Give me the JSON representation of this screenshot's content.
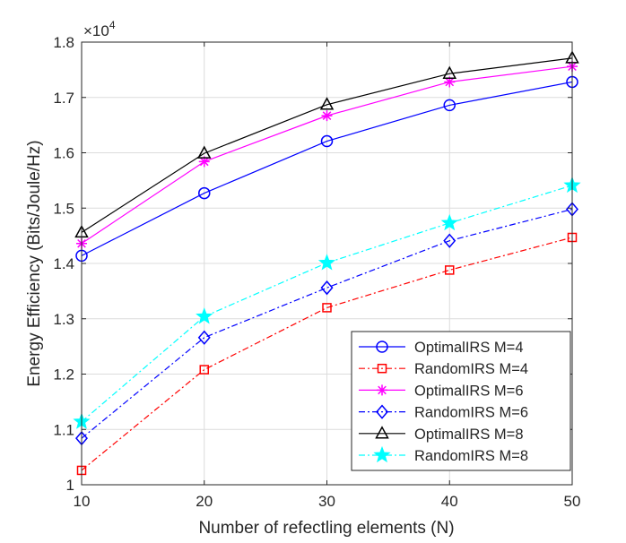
{
  "chart_data": {
    "type": "line",
    "title": "",
    "xlabel": "Number of refectling elements (N)",
    "ylabel": "Energy Efficiency (Bits/Joule/Hz)",
    "y_exponent_label": "×10",
    "y_exponent_power": "4",
    "x": [
      10,
      20,
      30,
      40,
      50
    ],
    "xlim": [
      10,
      50
    ],
    "ylim": [
      1.0,
      1.8
    ],
    "x_ticks": [
      "10",
      "20",
      "30",
      "40",
      "50"
    ],
    "y_ticks": [
      "1",
      "1.1",
      "1.2",
      "1.3",
      "1.4",
      "1.5",
      "1.6",
      "1.7",
      "1.8"
    ],
    "grid": true,
    "legend_position": "bottom-right",
    "series": [
      {
        "name": "OptimalIRS M=4",
        "values": [
          1.414,
          1.527,
          1.621,
          1.686,
          1.728
        ],
        "color": "#0000ff",
        "dash": "solid",
        "marker": "circle"
      },
      {
        "name": "RandomIRS M=4",
        "values": [
          1.026,
          1.208,
          1.32,
          1.388,
          1.447
        ],
        "color": "#ff0000",
        "dash": "dashdot",
        "marker": "square"
      },
      {
        "name": "OptimalIRS M=6",
        "values": [
          1.436,
          1.584,
          1.667,
          1.728,
          1.756
        ],
        "color": "#ff00ff",
        "dash": "solid",
        "marker": "asterisk"
      },
      {
        "name": "RandomIRS M=6",
        "values": [
          1.084,
          1.266,
          1.356,
          1.441,
          1.498
        ],
        "color": "#0000ff",
        "dash": "dashdot",
        "marker": "diamond"
      },
      {
        "name": "OptimalIRS M=8",
        "values": [
          1.456,
          1.599,
          1.687,
          1.743,
          1.771
        ],
        "color": "#000000",
        "dash": "solid",
        "marker": "triangle"
      },
      {
        "name": "RandomIRS M=8",
        "values": [
          1.114,
          1.304,
          1.401,
          1.473,
          1.541
        ],
        "color": "#00ffff",
        "dash": "dashdot",
        "marker": "pentagram"
      }
    ]
  }
}
